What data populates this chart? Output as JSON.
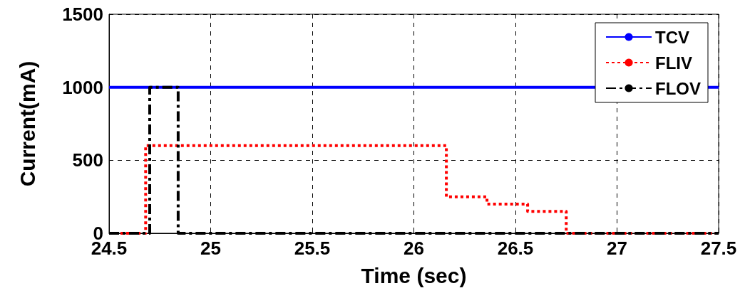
{
  "chart_data": {
    "type": "step",
    "xlabel": "Time (sec)",
    "ylabel": "Current(mA)",
    "xlim": [
      24.5,
      27.5
    ],
    "xticks": [
      24.5,
      25,
      25.5,
      26,
      26.5,
      27,
      27.5
    ],
    "ylim": [
      0,
      1500
    ],
    "yticks": [
      0,
      500,
      1000,
      1500
    ],
    "grid": true,
    "legend": "top right",
    "marker": "none",
    "series": [
      {
        "name": "TCV",
        "color": "#0000ff",
        "line_style": "solid",
        "x": [
          24.5,
          27.5
        ],
        "values": [
          1000,
          1000
        ]
      },
      {
        "name": "FLIV",
        "color": "#ff0000",
        "line_style": "dotted",
        "x": [
          24.5,
          24.68,
          26.16,
          26.36,
          26.56,
          26.75,
          27.5
        ],
        "values": [
          0,
          600,
          250,
          200,
          150,
          0,
          0
        ]
      },
      {
        "name": "FLOV",
        "color": "#000000",
        "line_style": "dashed",
        "x": [
          24.5,
          24.7,
          24.84,
          27.5
        ],
        "values": [
          0,
          1000,
          0,
          0
        ]
      }
    ]
  }
}
